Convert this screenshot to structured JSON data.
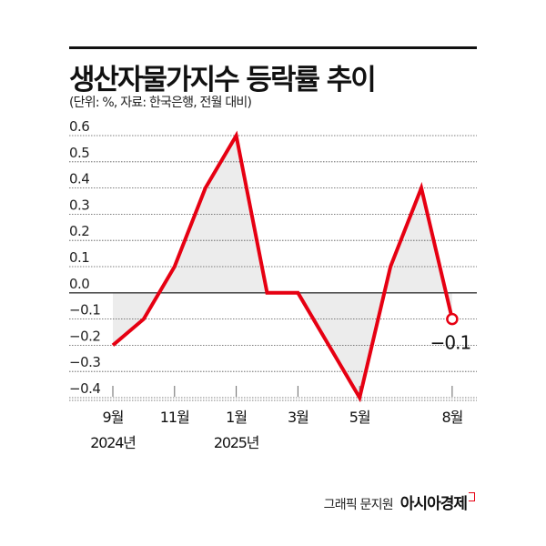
{
  "header": {
    "title": "생산자물가지수 등락률 추이",
    "subtitle": "(단위: %, 자료: 한국은행, 전월 대비)"
  },
  "footer": {
    "credit": "그래픽 문지원",
    "brand": "아시아경제"
  },
  "colors": {
    "line": "#e60012",
    "fill": "#ececec",
    "grid": "#555555",
    "zero_line": "#333333"
  },
  "chart_data": {
    "type": "line",
    "title": "생산자물가지수 등락률 추이",
    "subtitle": "(단위: %, 자료: 한국은행, 전월 대비)",
    "xlabel": "",
    "ylabel": "%",
    "x": [
      "2024-09",
      "2024-10",
      "2024-11",
      "2024-12",
      "2025-01",
      "2025-02",
      "2025-03",
      "2025-04",
      "2025-05",
      "2025-06",
      "2025-07",
      "2025-08"
    ],
    "series": [
      {
        "name": "생산자물가지수 전월 대비 등락률",
        "values": [
          -0.2,
          -0.1,
          0.1,
          0.4,
          0.6,
          0.0,
          0.0,
          -0.2,
          -0.4,
          0.1,
          0.4,
          -0.1
        ]
      }
    ],
    "ylim": [
      -0.4,
      0.6
    ],
    "yticks": [
      "0.6",
      "0.5",
      "0.4",
      "0.3",
      "0.2",
      "0.1",
      "0.0",
      "-0.1",
      "-0.2",
      "-0.3",
      "-0.4"
    ],
    "xtick_labels": [
      {
        "index": 0,
        "line1": "9월",
        "line2": "2024년"
      },
      {
        "index": 2,
        "line1": "11월",
        "line2": ""
      },
      {
        "index": 4,
        "line1": "1월",
        "line2": "2025년"
      },
      {
        "index": 6,
        "line1": "3월",
        "line2": ""
      },
      {
        "index": 8,
        "line1": "5월",
        "line2": ""
      },
      {
        "index": 11,
        "line1": "8월",
        "line2": ""
      }
    ],
    "annotations": [
      {
        "index": 11,
        "text": "-0.1",
        "marker": "open-circle"
      }
    ],
    "grid": true,
    "legend": "none"
  }
}
